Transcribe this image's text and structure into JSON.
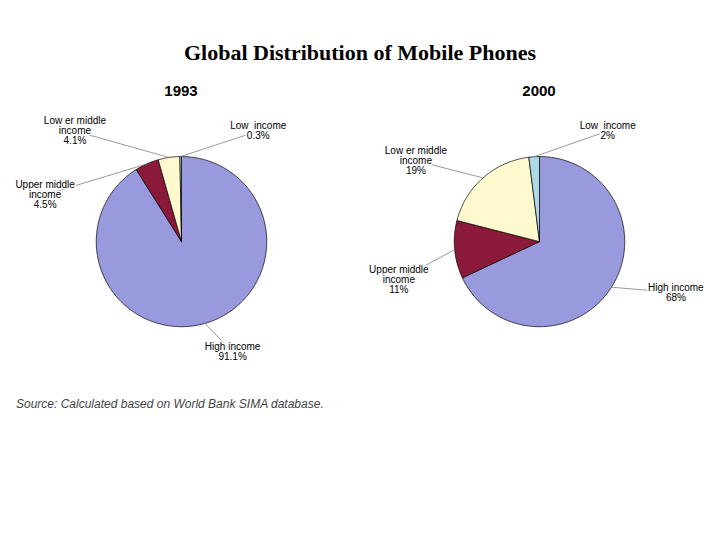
{
  "title": "Global Distribution of Mobile Phones",
  "annotations": [
    "Source: Calculated based on World Bank SIMA database."
  ],
  "chart_data": [
    {
      "type": "pie",
      "title": "1993",
      "categories": [
        "High income",
        "Upper middle\nincome",
        "Low er middle\nincome",
        "Low  income"
      ],
      "values": [
        91.1,
        4.5,
        4.1,
        0.3
      ],
      "value_labels": [
        "91.1%",
        "4.5%",
        "4.1%",
        "0.3%"
      ],
      "colors": [
        "#9999DD",
        "#8B1A3A",
        "#FFFACD",
        "#ADD8E6"
      ],
      "data_labels": true
    },
    {
      "type": "pie",
      "title": "2000",
      "categories": [
        "High income",
        "Upper middle\nincome",
        "Low er middle\nincome",
        "Low  income"
      ],
      "values": [
        68,
        11,
        19,
        2
      ],
      "value_labels": [
        "68%",
        "11%",
        "19%",
        "2%"
      ],
      "colors": [
        "#9999DD",
        "#8B1A3A",
        "#FFFACD",
        "#ADD8E6"
      ],
      "data_labels": true
    }
  ]
}
